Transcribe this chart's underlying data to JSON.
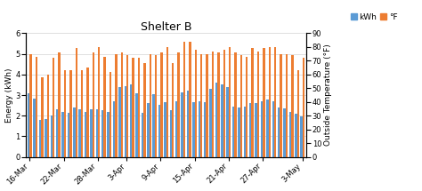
{
  "title": "Shelter B",
  "ylabel_left": "Energy (kWh)",
  "ylabel_right": "Outside Temperature (°F)",
  "legend_labels": [
    "kWh",
    "°F"
  ],
  "bar_color_kwh": "#5b9bd5",
  "bar_color_temp": "#ed7d31",
  "ylim_left": [
    0,
    6
  ],
  "ylim_right": [
    0,
    90
  ],
  "yticks_left": [
    0,
    1,
    2,
    3,
    4,
    5,
    6
  ],
  "yticks_right": [
    0,
    10,
    20,
    30,
    40,
    50,
    60,
    70,
    80,
    90
  ],
  "x_tick_labels": [
    "16-Mar",
    "22-Mar",
    "28-Mar",
    "3-Apr",
    "9-Apr",
    "15-Apr",
    "21-Apr",
    "27-Apr",
    "3-May"
  ],
  "kwh_values": [
    3.1,
    2.85,
    1.8,
    1.85,
    2.0,
    2.3,
    2.2,
    2.15,
    2.4,
    2.3,
    2.2,
    2.3,
    2.3,
    2.25,
    2.2,
    2.7,
    3.4,
    3.45,
    3.5,
    3.1,
    2.15,
    2.6,
    3.05,
    2.55,
    2.65,
    2.25,
    2.7,
    3.15,
    3.2,
    2.65,
    2.7,
    2.65,
    3.3,
    3.6,
    3.5,
    3.4,
    2.45,
    2.4,
    2.45,
    2.6,
    2.6,
    2.7,
    2.8,
    2.7,
    2.4,
    2.35,
    2.2,
    2.1,
    1.95
  ],
  "temp_values": [
    75,
    73,
    58,
    60,
    72,
    76,
    63,
    63,
    79,
    63,
    65,
    76,
    80,
    73,
    62,
    75,
    76,
    74,
    72,
    72,
    68,
    75,
    74,
    76,
    80,
    68,
    76,
    84,
    84,
    78,
    75,
    75,
    77,
    76,
    78,
    80,
    76,
    74,
    73,
    79,
    77,
    79,
    80,
    80,
    75,
    75,
    74,
    63,
    72
  ],
  "x_tick_positions": [
    0,
    6,
    12,
    17,
    23,
    29,
    35,
    41,
    48
  ],
  "background_color": "#ffffff",
  "grid_color": "#d3d3d3",
  "bar_width": 0.38,
  "bar_gap": 0.0
}
